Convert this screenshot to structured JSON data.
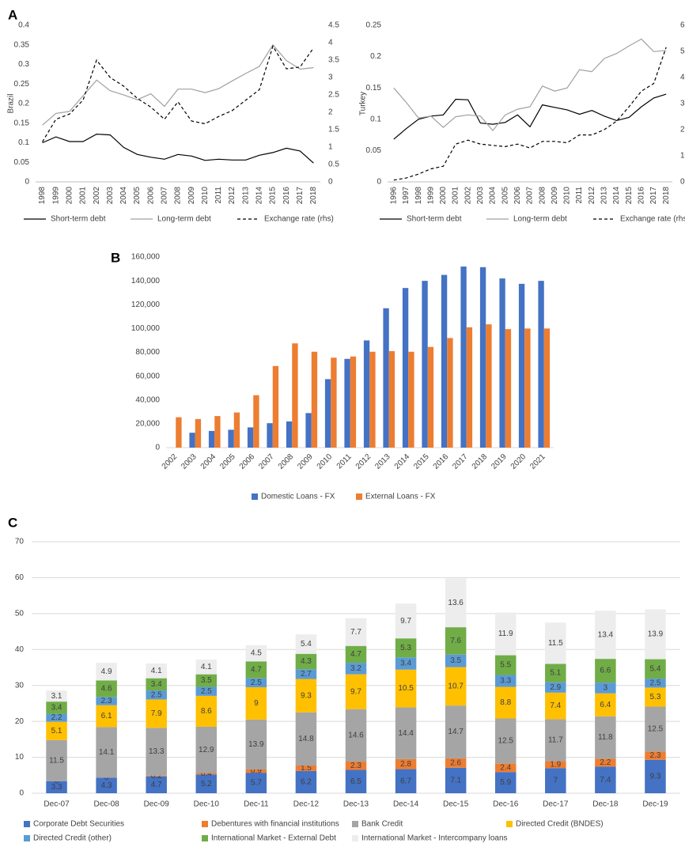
{
  "chart_data": [
    {
      "type": "line",
      "panel_label": "A",
      "y_label": "Brazil",
      "categories": [
        "1998",
        "1999",
        "2000",
        "2001",
        "2002",
        "2003",
        "2004",
        "2005",
        "2006",
        "2007",
        "2008",
        "2009",
        "2010",
        "2011",
        "2012",
        "2013",
        "2014",
        "2015",
        "2016",
        "2017",
        "2018"
      ],
      "ylim": [
        0,
        0.4
      ],
      "yticks": [
        0,
        0.05,
        0.1,
        0.15,
        0.2,
        0.25,
        0.3,
        0.35,
        0.4
      ],
      "y2lim": [
        0,
        4.5
      ],
      "y2ticks": [
        0,
        0.5,
        1,
        1.5,
        2,
        2.5,
        3,
        3.5,
        4,
        4.5
      ],
      "series": [
        {
          "name": "Short-term debt",
          "color": "#000000",
          "style": "solid",
          "values": [
            0.1,
            0.115,
            0.103,
            0.103,
            0.122,
            0.12,
            0.088,
            0.07,
            0.063,
            0.058,
            0.07,
            0.066,
            0.055,
            0.058,
            0.056,
            0.056,
            0.068,
            0.075,
            0.086,
            0.079,
            0.048
          ]
        },
        {
          "name": "Long-term debt",
          "color": "#a0a0a0",
          "style": "solid",
          "values": [
            0.145,
            0.175,
            0.18,
            0.22,
            0.26,
            0.233,
            0.222,
            0.21,
            0.225,
            0.193,
            0.237,
            0.237,
            0.228,
            0.238,
            0.258,
            0.277,
            0.295,
            0.35,
            0.31,
            0.288,
            0.292
          ]
        },
        {
          "name": "Exchange rate (rhs)",
          "color": "#000000",
          "style": "dashed",
          "axis": "y2",
          "values": [
            1.15,
            1.8,
            1.95,
            2.35,
            3.5,
            3.0,
            2.75,
            2.4,
            2.15,
            1.8,
            2.3,
            1.75,
            1.67,
            1.88,
            2.05,
            2.35,
            2.65,
            3.9,
            3.25,
            3.3,
            3.85
          ]
        }
      ]
    },
    {
      "type": "line",
      "y_label": "Turkey",
      "categories": [
        "1996",
        "1997",
        "1998",
        "1999",
        "2000",
        "2001",
        "2002",
        "2003",
        "2004",
        "2005",
        "2006",
        "2007",
        "2008",
        "2009",
        "2010",
        "2011",
        "2012",
        "2013",
        "2014",
        "2015",
        "2016",
        "2017",
        "2018"
      ],
      "ylim": [
        0,
        0.25
      ],
      "yticks": [
        0,
        0.05,
        0.1,
        0.15,
        0.2,
        0.25
      ],
      "y2lim": [
        0,
        6
      ],
      "y2ticks": [
        0,
        1,
        2,
        3,
        4,
        5,
        6
      ],
      "series": [
        {
          "name": "Short-term debt",
          "color": "#000000",
          "style": "solid",
          "values": [
            0.068,
            0.085,
            0.1,
            0.105,
            0.107,
            0.132,
            0.131,
            0.094,
            0.092,
            0.095,
            0.107,
            0.088,
            0.123,
            0.119,
            0.115,
            0.108,
            0.114,
            0.105,
            0.098,
            0.103,
            0.12,
            0.134,
            0.14
          ]
        },
        {
          "name": "Long-term debt",
          "color": "#a0a0a0",
          "style": "solid",
          "values": [
            0.15,
            0.127,
            0.102,
            0.105,
            0.087,
            0.104,
            0.107,
            0.105,
            0.082,
            0.107,
            0.116,
            0.12,
            0.153,
            0.145,
            0.15,
            0.179,
            0.176,
            0.197,
            0.205,
            0.217,
            0.228,
            0.208,
            0.21
          ]
        },
        {
          "name": "Exchange rate (rhs)",
          "color": "#000000",
          "style": "dashed",
          "axis": "y2",
          "values": [
            0.07,
            0.15,
            0.3,
            0.5,
            0.6,
            1.45,
            1.6,
            1.45,
            1.4,
            1.35,
            1.45,
            1.3,
            1.55,
            1.55,
            1.5,
            1.8,
            1.8,
            2.0,
            2.33,
            2.88,
            3.48,
            3.77,
            5.16
          ]
        }
      ]
    },
    {
      "type": "bar",
      "panel_label": "B",
      "categories": [
        "2002",
        "2003",
        "2004",
        "2005",
        "2006",
        "2007",
        "2008",
        "2009",
        "2010",
        "2011",
        "2012",
        "2013",
        "2014",
        "2015",
        "2016",
        "2017",
        "2018",
        "2019",
        "2020",
        "2021"
      ],
      "ylim": [
        0,
        160000
      ],
      "yticks": [
        0,
        {
          "value": 20000,
          "label": "20,000"
        },
        {
          "value": 40000,
          "label": "40,000"
        },
        {
          "value": 60000,
          "label": "60,000"
        },
        {
          "value": 80000,
          "label": "80,000"
        },
        {
          "value": 100000,
          "label": "100,000"
        },
        {
          "value": 120000,
          "label": "120,000"
        },
        {
          "value": 140000,
          "label": "140,000"
        },
        {
          "value": 160000,
          "label": "160,000"
        }
      ],
      "series": [
        {
          "name": "Domestic Loans - FX",
          "color": "#4472c4",
          "values": [
            null,
            12500,
            14000,
            15000,
            17000,
            20500,
            22000,
            29000,
            57500,
            74500,
            90000,
            117000,
            134000,
            140000,
            145000,
            152000,
            151500,
            142000,
            137500,
            140000
          ]
        },
        {
          "name": "External Loans - FX",
          "color": "#ed7d31",
          "values": [
            25500,
            24000,
            26500,
            29500,
            44000,
            68500,
            87500,
            80500,
            75500,
            76500,
            80500,
            81000,
            80500,
            84500,
            92000,
            101000,
            103500,
            99500,
            100000,
            100000
          ]
        }
      ]
    },
    {
      "type": "stacked_bar",
      "panel_label": "C",
      "grid": true,
      "categories": [
        "Dec-07",
        "Dec-08",
        "Dec-09",
        "Dec-10",
        "Dec-11",
        "Dec-12",
        "Dec-13",
        "Dec-14",
        "Dec-15",
        "Dec-16",
        "Dec-17",
        "Dec-18",
        "Dec-19"
      ],
      "ylim": [
        0,
        70
      ],
      "yticks": [
        0,
        10,
        20,
        30,
        40,
        50,
        60,
        70
      ],
      "series": [
        {
          "name": "Corporate Debt Securities",
          "color": "#4472c4",
          "values": [
            3.3,
            4.3,
            4.7,
            5.2,
            5.7,
            6.2,
            6.5,
            6.7,
            7.1,
            5.9,
            7,
            7.4,
            9.3
          ]
        },
        {
          "name": "Debentures with financial institutions",
          "color": "#ed7d31",
          "values": [
            0,
            0,
            0.2,
            0.4,
            0.9,
            1.5,
            2.3,
            2.8,
            2.6,
            2.4,
            1.9,
            2.2,
            2.3
          ]
        },
        {
          "name": "Bank Credit",
          "color": "#a5a5a5",
          "values": [
            11.5,
            14.1,
            13.3,
            12.9,
            13.9,
            14.8,
            14.6,
            14.4,
            14.7,
            12.5,
            11.7,
            11.8,
            12.5
          ]
        },
        {
          "name": "Directed Credit (BNDES)",
          "color": "#ffc000",
          "values": [
            5.1,
            6.1,
            7.9,
            8.6,
            9,
            9.3,
            9.7,
            10.5,
            10.7,
            8.8,
            7.4,
            6.4,
            5.3
          ]
        },
        {
          "name": "Directed Credit (other)",
          "color": "#5b9bd5",
          "values": [
            2.2,
            2.3,
            2.5,
            2.5,
            2.5,
            2.7,
            3.2,
            3.4,
            3.5,
            3.3,
            2.9,
            3,
            2.5
          ]
        },
        {
          "name": "International Market - External Debt",
          "color": "#70ad47",
          "values": [
            3.4,
            4.6,
            3.4,
            3.5,
            4.7,
            4.3,
            4.7,
            5.3,
            7.6,
            5.5,
            5.1,
            6.6,
            5.4
          ]
        },
        {
          "name": "International Market - Intercompany loans",
          "color": "#ededed",
          "values": [
            3.1,
            4.9,
            4.1,
            4.1,
            4.5,
            5.4,
            7.7,
            9.7,
            13.6,
            11.9,
            11.5,
            13.4,
            13.9
          ]
        }
      ]
    }
  ]
}
